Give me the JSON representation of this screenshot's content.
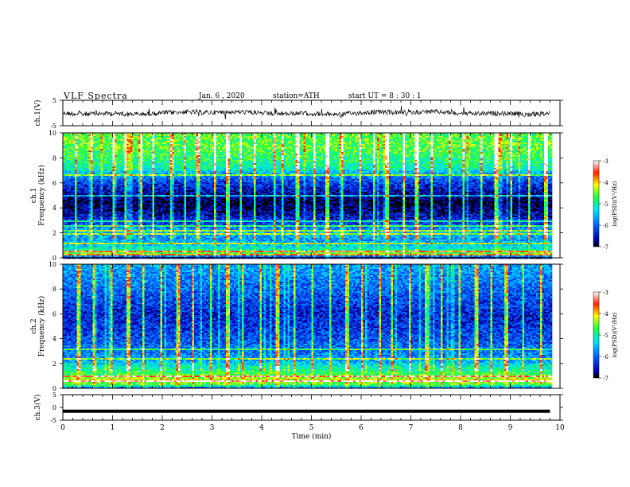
{
  "header": {
    "title": "VLF Spectra",
    "date": "Jan. 6 , 2020",
    "station": "station=ATH",
    "start_ut": "start UT = 8 : 30 : 1"
  },
  "chart_data": [
    {
      "type": "line",
      "name": "ch1-waveform",
      "ylabel": "ch.1(V)",
      "ylim": [
        -5,
        5
      ],
      "yticks": [
        "5",
        "-5"
      ],
      "xlim": [
        0,
        10
      ],
      "baseline": 0,
      "note": "dense noisy waveform around 0 V spanning 0 to 9.8 min"
    },
    {
      "type": "heatmap",
      "name": "ch1-spectrogram",
      "ylabel": "ch.1\nFrequency (kHz)",
      "ylim": [
        0,
        10
      ],
      "yticks": [
        "0",
        "2",
        "4",
        "6",
        "8",
        "10"
      ],
      "xlim": [
        0,
        10
      ],
      "data_end_min": 9.8,
      "colorbar": {
        "label": "log(PSD)(V²/Hz)",
        "ticks": [
          "-3",
          "-4",
          "-5",
          "-6",
          "-7"
        ],
        "range": [
          -7,
          -3
        ]
      },
      "profile_khz_logpsd": [
        [
          0.0,
          -7.0
        ],
        [
          0.4,
          -4.6
        ],
        [
          0.8,
          -5.2
        ],
        [
          1.5,
          -5.7
        ],
        [
          2.2,
          -5.5
        ],
        [
          2.8,
          -6.2
        ],
        [
          3.4,
          -6.5
        ],
        [
          4.0,
          -6.8
        ],
        [
          4.6,
          -6.9
        ],
        [
          5.2,
          -6.6
        ],
        [
          6.0,
          -6.3
        ],
        [
          6.6,
          -5.8
        ],
        [
          7.2,
          -5.1
        ],
        [
          8.0,
          -4.8
        ],
        [
          9.0,
          -4.6
        ],
        [
          10.0,
          -4.6
        ]
      ],
      "bright_lines_khz": [
        0.35,
        0.55,
        1.2,
        2.0,
        2.25,
        2.6,
        3.0,
        5.0,
        6.7
      ],
      "spherics_min": [
        0.25,
        0.55,
        1.0,
        1.25,
        1.55,
        1.8,
        2.15,
        2.45,
        2.7,
        3.05,
        3.3,
        3.55,
        3.85,
        4.25,
        4.4,
        4.7,
        5.05,
        5.3,
        5.6,
        5.95,
        6.25,
        6.5,
        6.85,
        7.1,
        7.4,
        7.75,
        8.05,
        8.4,
        8.7,
        9.0,
        9.35,
        9.7
      ]
    },
    {
      "type": "heatmap",
      "name": "ch2-spectrogram",
      "ylabel": "ch.2\nFrequency (kHz)",
      "ylim": [
        0,
        10
      ],
      "yticks": [
        "0",
        "2",
        "4",
        "6",
        "8",
        "10"
      ],
      "xlim": [
        0,
        10
      ],
      "data_end_min": 9.8,
      "colorbar": {
        "label": "log(PSD)(V²/Hz)",
        "ticks": [
          "-3",
          "-4",
          "-5",
          "-6",
          "-7"
        ],
        "range": [
          -7,
          -3
        ]
      },
      "profile_khz_logpsd": [
        [
          0.0,
          -6.5
        ],
        [
          0.3,
          -4.8
        ],
        [
          0.7,
          -4.2
        ],
        [
          1.2,
          -4.7
        ],
        [
          1.8,
          -5.1
        ],
        [
          2.3,
          -5.6
        ],
        [
          3.0,
          -5.9
        ],
        [
          4.0,
          -6.1
        ],
        [
          5.0,
          -6.3
        ],
        [
          6.0,
          -6.4
        ],
        [
          7.0,
          -6.2
        ],
        [
          8.0,
          -6.0
        ],
        [
          9.0,
          -5.8
        ],
        [
          10.0,
          -5.6
        ]
      ],
      "bright_lines_khz": [
        0.7,
        1.0,
        1.6,
        2.4,
        3.2
      ],
      "spherics_min": [
        0.3,
        0.6,
        0.95,
        1.3,
        1.6,
        1.95,
        2.3,
        2.6,
        2.95,
        3.3,
        3.6,
        3.95,
        4.3,
        4.65,
        5.0,
        5.35,
        5.7,
        6.0,
        6.35,
        6.6,
        6.95,
        7.3,
        7.6,
        7.95,
        8.3,
        8.6,
        8.9,
        9.25,
        9.6
      ]
    },
    {
      "type": "line",
      "name": "ch3-waveform",
      "ylabel": "ch.3(V)",
      "ylim": [
        -5,
        5
      ],
      "yticks": [
        "5",
        "0",
        "-5"
      ],
      "xlim": [
        0,
        10
      ],
      "values_const": -1.5,
      "xlabel": "Time (min)",
      "xticks": [
        "0",
        "1",
        "2",
        "3",
        "4",
        "5",
        "6",
        "7",
        "8",
        "9",
        "10"
      ]
    }
  ]
}
